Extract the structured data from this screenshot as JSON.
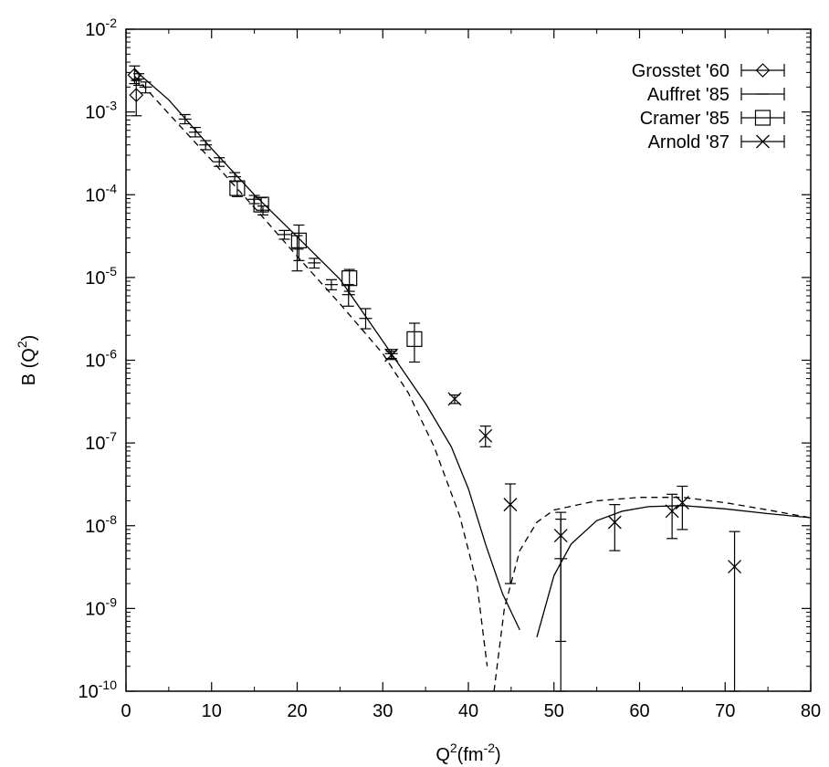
{
  "chart_data": {
    "type": "scatter",
    "title": "",
    "xlabel": {
      "base": "Q",
      "sup": "2",
      "unit_base": "(fm",
      "unit_sup": "-2",
      "unit_close": ")"
    },
    "ylabel": {
      "base": "B (Q",
      "sup": "2",
      "close": ")"
    },
    "x_scale": "linear",
    "y_scale": "log",
    "xlim": [
      0,
      80
    ],
    "ylim": [
      1e-10,
      0.01
    ],
    "x_ticks": [
      0,
      10,
      20,
      30,
      40,
      50,
      60,
      70,
      80
    ],
    "y_ticks": [
      {
        "value": 1e-10,
        "base": "10",
        "exp": "-10"
      },
      {
        "value": 1e-09,
        "base": "10",
        "exp": "-9"
      },
      {
        "value": 1e-08,
        "base": "10",
        "exp": "-8"
      },
      {
        "value": 1e-07,
        "base": "10",
        "exp": "-7"
      },
      {
        "value": 1e-06,
        "base": "10",
        "exp": "-6"
      },
      {
        "value": 1e-05,
        "base": "10",
        "exp": "-5"
      },
      {
        "value": 0.0001,
        "base": "10",
        "exp": "-4"
      },
      {
        "value": 0.001,
        "base": "10",
        "exp": "-3"
      },
      {
        "value": 0.01,
        "base": "10",
        "exp": "-2"
      }
    ],
    "grid": false,
    "legend_position": "top-right",
    "series": [
      {
        "name": "Grosstet '60",
        "marker": "diamond",
        "points": [
          {
            "x": 1.0,
            "y": 0.0028,
            "lo": 0.0022,
            "hi": 0.0036
          },
          {
            "x": 1.2,
            "y": 0.0016,
            "lo": 0.0009,
            "hi": 0.0024
          }
        ]
      },
      {
        "name": "Auffret '85",
        "marker": "plus",
        "points": [
          {
            "x": 1.5,
            "y": 0.0025,
            "lo": 0.0021,
            "hi": 0.0029
          },
          {
            "x": 2.3,
            "y": 0.002,
            "lo": 0.0017,
            "hi": 0.0023
          },
          {
            "x": 6.9,
            "y": 0.00082,
            "lo": 0.00072,
            "hi": 0.00093
          },
          {
            "x": 8.1,
            "y": 0.00057,
            "lo": 0.0005,
            "hi": 0.00065
          },
          {
            "x": 9.3,
            "y": 0.0004,
            "lo": 0.00035,
            "hi": 0.00045
          },
          {
            "x": 10.9,
            "y": 0.00025,
            "lo": 0.00022,
            "hi": 0.00028
          },
          {
            "x": 12.7,
            "y": 0.000165,
            "lo": 0.000145,
            "hi": 0.000185
          },
          {
            "x": 15.0,
            "y": 8.8e-05,
            "lo": 7.8e-05,
            "hi": 9.8e-05
          },
          {
            "x": 16.0,
            "y": 6.5e-05,
            "lo": 5.7e-05,
            "hi": 7.3e-05
          },
          {
            "x": 18.5,
            "y": 3.3e-05,
            "lo": 2.9e-05,
            "hi": 3.7e-05
          },
          {
            "x": 20.0,
            "y": 2.2e-05,
            "lo": 1.2e-05,
            "hi": 3.2e-05
          },
          {
            "x": 22.0,
            "y": 1.5e-05,
            "lo": 1.3e-05,
            "hi": 1.7e-05
          },
          {
            "x": 24.0,
            "y": 8.2e-06,
            "lo": 7.1e-06,
            "hi": 9.4e-06
          },
          {
            "x": 26.0,
            "y": 6.2e-06,
            "lo": 4.5e-06,
            "hi": 8.2e-06
          },
          {
            "x": 28.0,
            "y": 3.2e-06,
            "lo": 2.4e-06,
            "hi": 4.2e-06
          },
          {
            "x": 31.0,
            "y": 1.2e-06,
            "lo": 1.05e-06,
            "hi": 1.35e-06
          },
          {
            "x": 50.8,
            "y": 4e-09,
            "lo": 4e-10,
            "hi": 1.2e-08
          }
        ]
      },
      {
        "name": "Cramer '85",
        "marker": "square",
        "points": [
          {
            "x": 13.0,
            "y": 0.00012,
            "lo": 9.5e-05,
            "hi": 0.000145
          },
          {
            "x": 15.8,
            "y": 7.6e-05,
            "lo": 6.2e-05,
            "hi": 9.2e-05
          },
          {
            "x": 20.2,
            "y": 2.8e-05,
            "lo": 1.6e-05,
            "hi": 4.3e-05
          },
          {
            "x": 26.1,
            "y": 9.8e-06,
            "lo": 6.8e-06,
            "hi": 1.25e-05
          },
          {
            "x": 33.7,
            "y": 1.8e-06,
            "lo": 9.5e-07,
            "hi": 2.8e-06
          }
        ]
      },
      {
        "name": "Arnold '87",
        "marker": "x",
        "points": [
          {
            "x": 31.0,
            "y": 1.15e-06,
            "lo": 1.02e-06,
            "hi": 1.28e-06
          },
          {
            "x": 38.4,
            "y": 3.4e-07,
            "lo": 3e-07,
            "hi": 3.8e-07
          },
          {
            "x": 42.0,
            "y": 1.22e-07,
            "lo": 9e-08,
            "hi": 1.6e-07
          },
          {
            "x": 44.9,
            "y": 1.8e-08,
            "lo": 2e-09,
            "hi": 3.2e-08
          },
          {
            "x": 50.8,
            "y": 7.6e-09,
            "lo": 1e-10,
            "hi": 1.45e-08
          },
          {
            "x": 57.1,
            "y": 1.1e-08,
            "lo": 5e-09,
            "hi": 1.8e-08
          },
          {
            "x": 63.8,
            "y": 1.5e-08,
            "lo": 7e-09,
            "hi": 2.4e-08
          },
          {
            "x": 65.0,
            "y": 1.9e-08,
            "lo": 9e-09,
            "hi": 3e-08
          },
          {
            "x": 71.1,
            "y": 3.2e-09,
            "lo": 1e-10,
            "hi": 8.5e-09
          }
        ]
      }
    ],
    "curves": [
      {
        "style": "solid",
        "segments": [
          [
            [
              1,
              0.0032
            ],
            [
              5,
              0.0014
            ],
            [
              10,
              0.00036
            ],
            [
              15,
              0.0001
            ],
            [
              20,
              3.1e-05
            ],
            [
              25,
              9.5e-06
            ],
            [
              30,
              1.7e-06
            ],
            [
              35,
              3e-07
            ],
            [
              38,
              9e-08
            ],
            [
              40,
              2.8e-08
            ],
            [
              42,
              6e-09
            ],
            [
              44,
              1.5e-09
            ],
            [
              46,
              5.5e-10
            ]
          ],
          [
            [
              48,
              4.5e-10
            ],
            [
              50,
              2.5e-09
            ],
            [
              52,
              6e-09
            ],
            [
              55,
              1.15e-08
            ],
            [
              58,
              1.5e-08
            ],
            [
              61,
              1.7e-08
            ],
            [
              65,
              1.75e-08
            ],
            [
              70,
              1.6e-08
            ],
            [
              75,
              1.4e-08
            ],
            [
              80,
              1.25e-08
            ]
          ]
        ]
      },
      {
        "style": "dashed",
        "segments": [
          [
            [
              1,
              0.0027
            ],
            [
              5,
              0.00095
            ],
            [
              10,
              0.00026
            ],
            [
              15,
              7e-05
            ],
            [
              20,
              1.8e-05
            ],
            [
              25,
              4.8e-06
            ],
            [
              30,
              1.2e-06
            ],
            [
              33,
              4e-07
            ],
            [
              36,
              9e-08
            ],
            [
              39,
              1.3e-08
            ],
            [
              41,
              2e-09
            ],
            [
              42.2,
              2e-10
            ]
          ],
          [
            [
              43.0,
              1e-10
            ],
            [
              44.2,
              1e-09
            ],
            [
              46,
              5e-09
            ],
            [
              48,
              1.1e-08
            ],
            [
              50,
              1.55e-08
            ],
            [
              55,
              2e-08
            ],
            [
              60,
              2.2e-08
            ],
            [
              65,
              2.2e-08
            ],
            [
              70,
              1.9e-08
            ],
            [
              75,
              1.55e-08
            ],
            [
              80,
              1.25e-08
            ]
          ]
        ]
      }
    ]
  }
}
